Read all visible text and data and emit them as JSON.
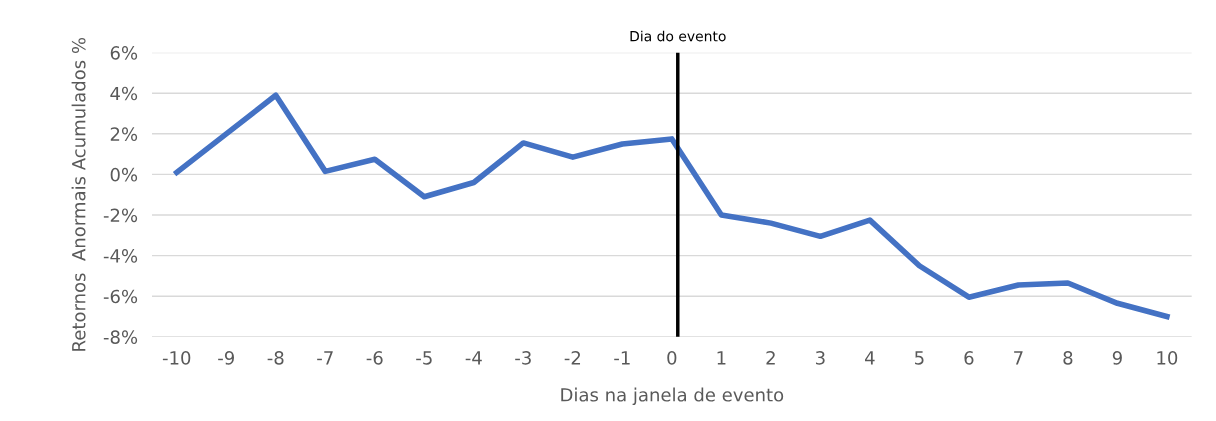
{
  "chart_data": {
    "type": "line",
    "xlabel": "Dias na janela de evento",
    "ylabel": "Retornos  Anormais Acumulados %",
    "categories": [
      "-10",
      "-9",
      "-8",
      "-7",
      "-6",
      "-5",
      "-4",
      "-3",
      "-2",
      "-1",
      "0",
      "1",
      "2",
      "3",
      "4",
      "5",
      "6",
      "7",
      "8",
      "9",
      "10"
    ],
    "series": [
      {
        "color": "#4472c4",
        "values": [
          0.1,
          2.0,
          3.9,
          0.15,
          0.75,
          -1.1,
          -0.4,
          1.55,
          0.85,
          1.5,
          1.75,
          -2.0,
          -2.4,
          -3.05,
          -2.25,
          -4.5,
          -6.05,
          -5.45,
          -5.35,
          -6.35,
          -7.0
        ]
      }
    ],
    "ylim": [
      -8,
      6
    ],
    "yticks": [
      {
        "value": -8,
        "label": "-8%"
      },
      {
        "value": -6,
        "label": "-6%"
      },
      {
        "value": -4,
        "label": "-4%"
      },
      {
        "value": -2,
        "label": "-2%"
      },
      {
        "value": 0,
        "label": "0%"
      },
      {
        "value": 2,
        "label": "2%"
      },
      {
        "value": 4,
        "label": "4%"
      },
      {
        "value": 6,
        "label": "6%"
      }
    ],
    "ref_lines": [
      {
        "axis": "x",
        "value": "0",
        "label": "Dia do evento",
        "color": "#000000"
      }
    ],
    "grid": "y",
    "legend": false,
    "marker": "none",
    "line_style": "solid"
  }
}
